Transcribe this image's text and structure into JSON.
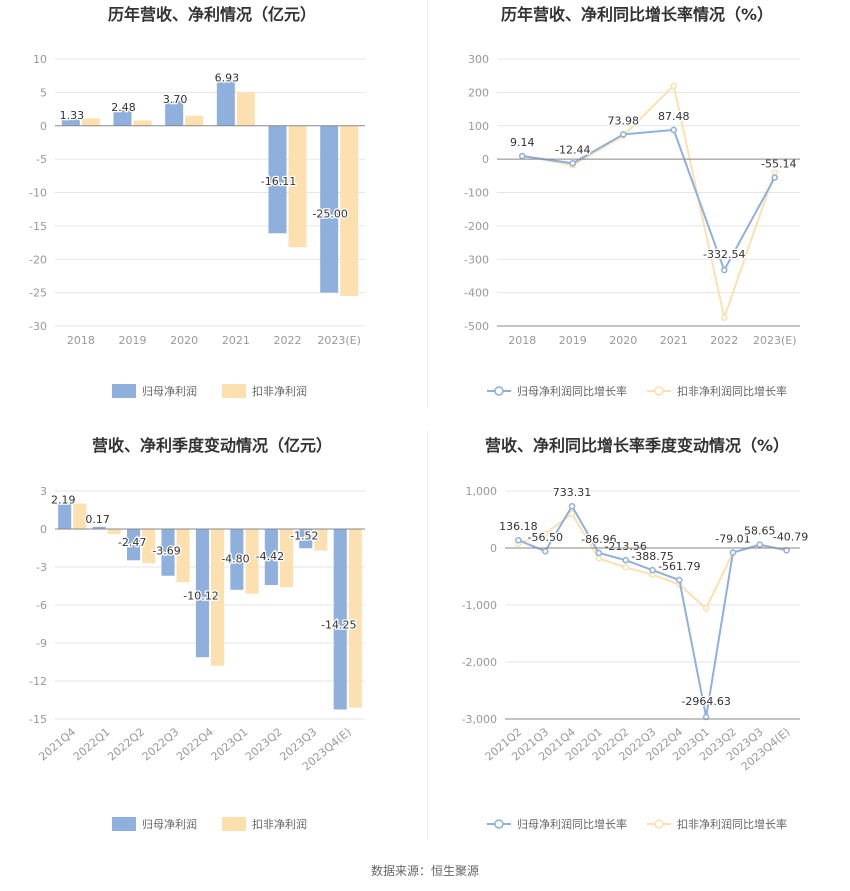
{
  "colors": {
    "series_a": "#8fb0dc",
    "series_b": "#fde0b0",
    "grid": "#e6e6e6",
    "axis": "#888888",
    "tick_text": "#999999",
    "label_text": "#333333",
    "title_text": "#333333"
  },
  "source_text": "数据来源：恒生聚源",
  "chart_data": [
    {
      "id": "annual-profit",
      "type": "bar",
      "title": "历年营收、净利情况（亿元）",
      "categories": [
        "2018",
        "2019",
        "2020",
        "2021",
        "2022",
        "2023(E)"
      ],
      "series": [
        {
          "name": "归母净利润",
          "values": [
            1.33,
            2.48,
            3.7,
            6.93,
            -16.11,
            -25.0
          ],
          "labels": [
            "1.33",
            "2.48",
            "3.70",
            "6.93",
            "-16.11",
            "-25.00"
          ]
        },
        {
          "name": "扣非净利润",
          "values": [
            1.1,
            0.8,
            1.5,
            5.0,
            -18.2,
            -25.5
          ]
        }
      ],
      "ylim": [
        -30,
        10
      ],
      "yticks": [
        10,
        5,
        0,
        -5,
        -10,
        -15,
        -20,
        -25,
        -30
      ],
      "ytick_labels": [
        "10",
        "5",
        "0",
        "-5",
        "-10",
        "-15",
        "-20",
        "-25",
        "-30"
      ],
      "grid": true,
      "legend": "bottom",
      "rotate_x": false
    },
    {
      "id": "annual-growth",
      "type": "line",
      "title": "历年营收、净利同比增长率情况（%）",
      "categories": [
        "2018",
        "2019",
        "2020",
        "2021",
        "2022",
        "2023(E)"
      ],
      "series": [
        {
          "name": "归母净利润同比增长率",
          "values": [
            9.14,
            -12.44,
            73.98,
            87.48,
            -332.54,
            -55.14
          ],
          "labels": [
            "9.14",
            "-12.44",
            "73.98",
            "87.48",
            "-332.54",
            "-55.14"
          ]
        },
        {
          "name": "扣非净利润同比增长率",
          "values": [
            10,
            -18,
            70,
            220,
            -475,
            -40
          ]
        }
      ],
      "ylim": [
        -500,
        300
      ],
      "yticks": [
        300,
        200,
        100,
        0,
        -100,
        -200,
        -300,
        -400,
        -500
      ],
      "ytick_labels": [
        "300",
        "200",
        "100",
        "0",
        "-100",
        "-200",
        "-300",
        "-400",
        "-500"
      ],
      "grid": true,
      "legend": "bottom",
      "rotate_x": false
    },
    {
      "id": "quarterly-profit",
      "type": "bar",
      "title": "营收、净利季度变动情况（亿元）",
      "categories": [
        "2021Q4",
        "2022Q1",
        "2022Q2",
        "2022Q3",
        "2022Q4",
        "2023Q1",
        "2023Q2",
        "2023Q3",
        "2023Q4(E)"
      ],
      "series": [
        {
          "name": "归母净利润",
          "values": [
            2.19,
            0.17,
            -2.47,
            -3.69,
            -10.12,
            -4.8,
            -4.42,
            -1.52,
            -14.25
          ],
          "labels": [
            "2.19",
            "0.17",
            "-2.47",
            "-3.69",
            "-10.12",
            "-4.80",
            "-4.42",
            "-1.52",
            "-14.25"
          ]
        },
        {
          "name": "扣非净利润",
          "values": [
            2.0,
            -0.4,
            -2.7,
            -4.2,
            -10.8,
            -5.1,
            -4.6,
            -1.7,
            -14.1
          ]
        }
      ],
      "ylim": [
        -15,
        3
      ],
      "yticks": [
        3,
        0,
        -3,
        -6,
        -9,
        -12,
        -15
      ],
      "ytick_labels": [
        "3",
        "0",
        "-3",
        "-6",
        "-9",
        "-12",
        "-15"
      ],
      "grid": true,
      "legend": "bottom",
      "rotate_x": true
    },
    {
      "id": "quarterly-growth",
      "type": "line",
      "title": "营收、净利同比增长率季度变动情况（%）",
      "categories": [
        "2021Q2",
        "2021Q3",
        "2021Q4",
        "2022Q1",
        "2022Q2",
        "2022Q3",
        "2022Q4",
        "2023Q1",
        "2023Q2",
        "2023Q3",
        "2023Q4(E)"
      ],
      "series": [
        {
          "name": "归母净利润同比增长率",
          "values": [
            136.18,
            -56.5,
            733.31,
            -86.96,
            -213.56,
            -388.75,
            -561.79,
            -2964.63,
            -79.01,
            58.65,
            -40.79
          ],
          "labels": [
            "136.18",
            "-56.50",
            "733.31",
            "-86.96",
            "-213.56",
            "-388.75",
            "-561.79",
            "-2964.63",
            "-79.01",
            "58.65",
            "-40.79"
          ]
        },
        {
          "name": "扣非净利润同比增长率",
          "values": [
            80,
            250,
            600,
            -180,
            -340,
            -470,
            -640,
            -1060,
            -80,
            40,
            -30
          ]
        }
      ],
      "ylim": [
        -3000,
        1000
      ],
      "yticks": [
        1000,
        0,
        -1000,
        -2000,
        -3000
      ],
      "ytick_labels": [
        "1,000",
        "0",
        "-1,000",
        "-2,000",
        "-3,000"
      ],
      "grid": true,
      "legend": "bottom",
      "rotate_x": true
    }
  ]
}
